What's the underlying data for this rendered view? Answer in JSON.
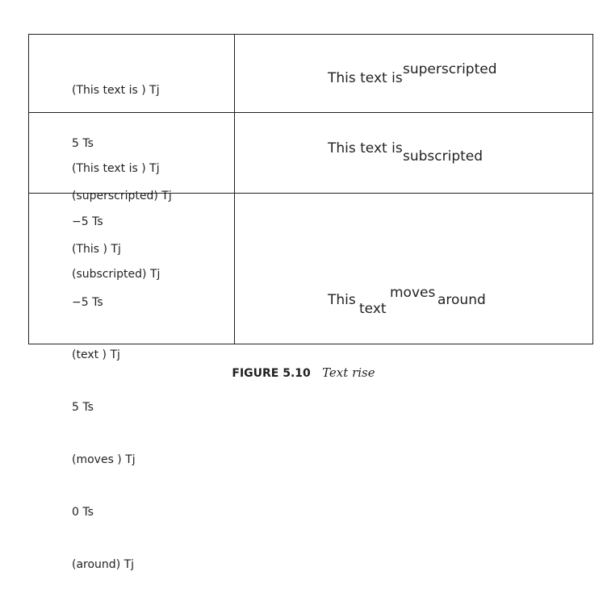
{
  "rows": [
    {
      "code": [
        "(This text is ) Tj",
        "5 Ts",
        "(superscripted) Tj"
      ],
      "demo": [
        "This text is",
        "superscripted"
      ]
    },
    {
      "code": [
        "(This text is ) Tj",
        "−5 Ts",
        "(subscripted) Tj"
      ],
      "demo": [
        "This text is",
        "subscripted"
      ]
    },
    {
      "code": [
        "(This ) Tj",
        "−5 Ts",
        "(text ) Tj",
        "5 Ts",
        "(moves ) Tj",
        "0 Ts",
        "(around) Tj"
      ],
      "demo": [
        "This",
        "text",
        "moves",
        "around"
      ]
    }
  ],
  "caption": {
    "number": "FIGURE 5.10",
    "title": "Text rise"
  }
}
